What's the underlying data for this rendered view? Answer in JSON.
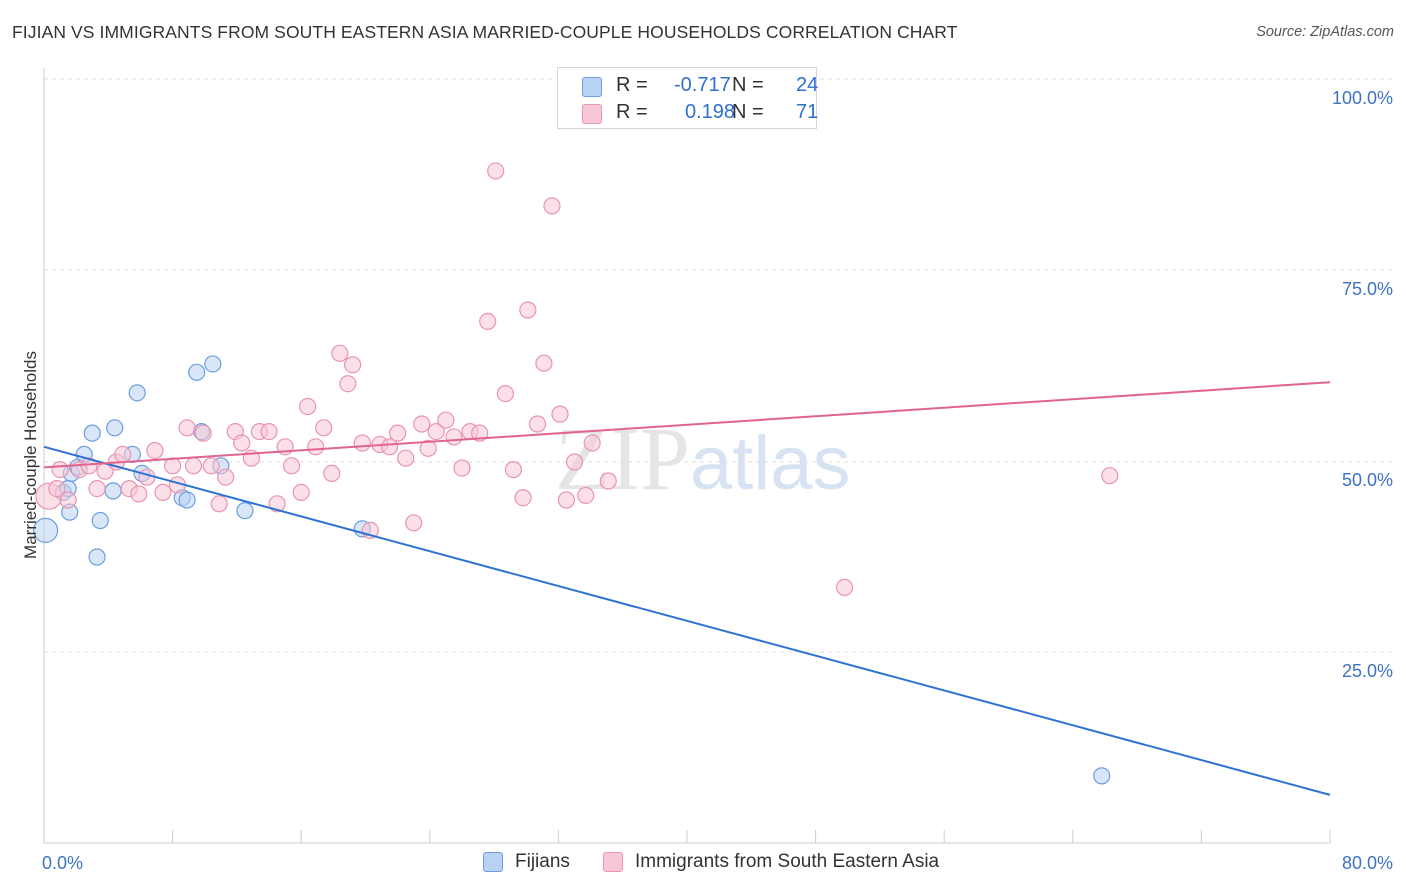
{
  "title": "FIJIAN VS IMMIGRANTS FROM SOUTH EASTERN ASIA MARRIED-COUPLE HOUSEHOLDS CORRELATION CHART",
  "source": "Source: ZipAtlas.com",
  "watermark": {
    "zip": "ZIP",
    "atlas": "atlas"
  },
  "legend": {
    "rows": [
      {
        "r_label": "R = ",
        "r_value": "-0.717",
        "n_label": "N = ",
        "n_value": "24"
      },
      {
        "r_label": "R = ",
        "r_value": "0.198",
        "n_label": "N = ",
        "n_value": "71"
      }
    ]
  },
  "bottom_legend": [
    "Fijians",
    "Immigrants from South Eastern Asia"
  ],
  "colors": {
    "fijians_fill": "#b9d1f3",
    "fijians_stroke": "#6c9ee0",
    "fijians_line": "#2f73d2",
    "asia_fill": "#f7c7d6",
    "asia_stroke": "#e994b1",
    "asia_line": "#e0648f",
    "tick_label": "#3e73c4",
    "grid": "#dddddd"
  },
  "chart_data": {
    "type": "scatter",
    "title": "FIJIAN VS IMMIGRANTS FROM SOUTH EASTERN ASIA MARRIED-COUPLE HOUSEHOLDS CORRELATION CHART",
    "xlabel": "",
    "ylabel": "Married-couple Households",
    "xlim": [
      0,
      80
    ],
    "ylim": [
      0,
      105
    ],
    "x_tick_labels": [
      "0.0%",
      "80.0%"
    ],
    "y_ticks": [
      25,
      50,
      75,
      100
    ],
    "y_tick_labels": [
      "25.0%",
      "50.0%",
      "75.0%",
      "100.0%"
    ],
    "grid": true,
    "series": [
      {
        "name": "Fijians",
        "points": [
          [
            0.1,
            41.0
          ],
          [
            1.2,
            46.0
          ],
          [
            1.6,
            43.4
          ],
          [
            1.7,
            48.5
          ],
          [
            2.1,
            49.3
          ],
          [
            2.5,
            51.0
          ],
          [
            3.0,
            53.8
          ],
          [
            3.3,
            37.5
          ],
          [
            3.5,
            42.3
          ],
          [
            4.4,
            54.5
          ],
          [
            4.3,
            46.2
          ],
          [
            5.5,
            51.0
          ],
          [
            6.1,
            48.5
          ],
          [
            5.8,
            59.1
          ],
          [
            8.6,
            45.3
          ],
          [
            8.9,
            45.0
          ],
          [
            9.5,
            61.8
          ],
          [
            9.8,
            54.0
          ],
          [
            10.5,
            62.9
          ],
          [
            11.0,
            49.5
          ],
          [
            12.5,
            43.6
          ],
          [
            19.8,
            41.2
          ],
          [
            65.8,
            8.7
          ],
          [
            1.5,
            46.5
          ]
        ],
        "trend": {
          "x": [
            0,
            80
          ],
          "y": [
            52.0,
            6.2
          ]
        }
      },
      {
        "name": "Immigrants from South Eastern Asia",
        "points": [
          [
            0.3,
            45.5
          ],
          [
            0.8,
            46.5
          ],
          [
            1.5,
            45.0
          ],
          [
            2.2,
            49.0
          ],
          [
            2.8,
            49.5
          ],
          [
            3.3,
            46.5
          ],
          [
            3.8,
            48.8
          ],
          [
            4.5,
            50.0
          ],
          [
            4.9,
            51.0
          ],
          [
            5.3,
            46.5
          ],
          [
            5.9,
            45.8
          ],
          [
            6.4,
            48.0
          ],
          [
            6.9,
            51.5
          ],
          [
            7.4,
            46.0
          ],
          [
            8.0,
            49.5
          ],
          [
            8.3,
            47.0
          ],
          [
            8.9,
            54.5
          ],
          [
            9.3,
            49.5
          ],
          [
            9.9,
            53.8
          ],
          [
            10.4,
            49.5
          ],
          [
            10.9,
            44.5
          ],
          [
            11.3,
            48.0
          ],
          [
            11.9,
            54.0
          ],
          [
            12.3,
            52.5
          ],
          [
            12.9,
            50.5
          ],
          [
            13.4,
            54.0
          ],
          [
            14.0,
            54.0
          ],
          [
            14.5,
            44.5
          ],
          [
            15.0,
            52.0
          ],
          [
            15.4,
            49.5
          ],
          [
            16.0,
            46.0
          ],
          [
            16.4,
            57.3
          ],
          [
            16.9,
            52.0
          ],
          [
            17.4,
            54.5
          ],
          [
            17.9,
            48.5
          ],
          [
            18.4,
            64.3
          ],
          [
            18.9,
            60.3
          ],
          [
            19.2,
            62.8
          ],
          [
            19.8,
            52.5
          ],
          [
            20.3,
            41.0
          ],
          [
            20.9,
            52.3
          ],
          [
            21.5,
            52.0
          ],
          [
            22.0,
            53.8
          ],
          [
            22.5,
            50.5
          ],
          [
            23.0,
            42.0
          ],
          [
            23.5,
            55.0
          ],
          [
            23.9,
            51.8
          ],
          [
            24.4,
            54.0
          ],
          [
            25.0,
            55.5
          ],
          [
            25.5,
            53.3
          ],
          [
            26.0,
            49.2
          ],
          [
            26.5,
            54.0
          ],
          [
            27.1,
            53.8
          ],
          [
            27.6,
            68.5
          ],
          [
            28.1,
            88.3
          ],
          [
            28.7,
            59.0
          ],
          [
            29.2,
            49.0
          ],
          [
            29.8,
            45.3
          ],
          [
            30.1,
            70.0
          ],
          [
            30.7,
            55.0
          ],
          [
            31.1,
            63.0
          ],
          [
            31.6,
            83.7
          ],
          [
            32.1,
            56.3
          ],
          [
            32.5,
            45.0
          ],
          [
            33.0,
            50.0
          ],
          [
            33.7,
            45.6
          ],
          [
            34.1,
            52.5
          ],
          [
            35.1,
            47.5
          ],
          [
            49.8,
            33.5
          ],
          [
            66.3,
            48.2
          ],
          [
            1.0,
            49.0
          ]
        ],
        "trend": {
          "x": [
            0,
            80
          ],
          "y": [
            49.3,
            60.5
          ]
        }
      }
    ]
  }
}
